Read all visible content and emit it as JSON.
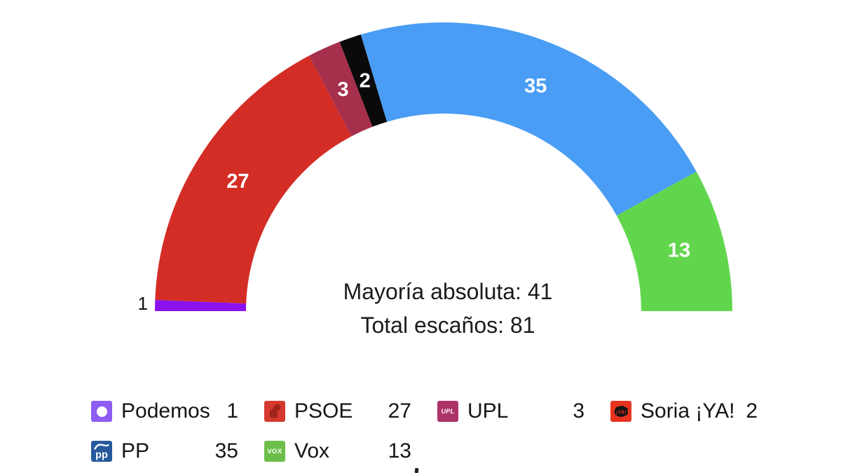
{
  "chart_data": {
    "type": "pie",
    "variant": "hemicycle-parliament-arc",
    "order": "left-to-right",
    "total_seats": 81,
    "majority": 41,
    "majority_label": "Mayoría absoluta: 41",
    "total_label": "Total escaños: 81",
    "inside_label_color": "#ffffff",
    "outside_label_color": "#111111",
    "series": [
      {
        "name": "Podemos",
        "seats": 1,
        "color": "#8A12EC",
        "label_position": "outside"
      },
      {
        "name": "PSOE",
        "seats": 27,
        "color": "#D32D26",
        "label_position": "inside"
      },
      {
        "name": "UPL",
        "seats": 3,
        "color": "#A62F4C",
        "label_position": "inside"
      },
      {
        "name": "Soria ¡YA!",
        "seats": 2,
        "color": "#0A0A0A",
        "label_position": "inside"
      },
      {
        "name": "PP",
        "seats": 35,
        "color": "#4A9DF4",
        "label_position": "inside"
      },
      {
        "name": "Vox",
        "seats": 13,
        "color": "#61D64D",
        "label_position": "inside"
      }
    ]
  },
  "legend": {
    "items": [
      {
        "label": "Podemos",
        "value": "1",
        "icon": "podemos-icon",
        "icon_bg": "#8D5CF2"
      },
      {
        "label": "PSOE",
        "value": "27",
        "icon": "psoe-icon",
        "icon_bg": "#D6392E"
      },
      {
        "label": "UPL",
        "value": "3",
        "icon": "upl-icon",
        "icon_bg": "#AC3368"
      },
      {
        "label": "Soria ¡YA!",
        "value": "2",
        "icon": "soria-ya-icon",
        "icon_bg": "#E8341F"
      },
      {
        "label": "PP",
        "value": "35",
        "icon": "pp-icon",
        "icon_bg": "#275A9C"
      },
      {
        "label": "Vox",
        "value": "13",
        "icon": "vox-icon",
        "icon_bg": "#6CBE4A"
      }
    ]
  }
}
